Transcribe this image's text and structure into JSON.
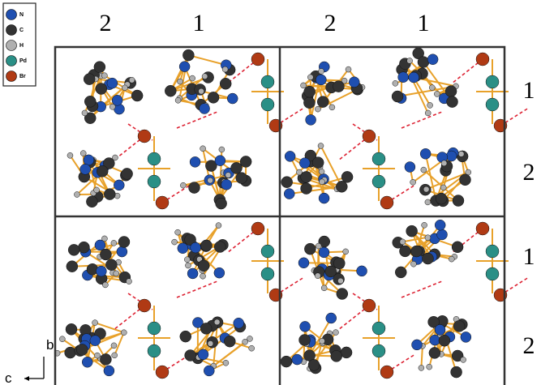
{
  "legend": [
    {
      "label": "N",
      "color": "#1f4fb0"
    },
    {
      "label": "C",
      "color": "#333333"
    },
    {
      "label": "H",
      "color": "#b0b0b0"
    },
    {
      "label": "Pd",
      "color": "#2a8f86"
    },
    {
      "label": "Br",
      "color": "#b03a14"
    }
  ],
  "column_labels": [
    "2",
    "1",
    "2",
    "1"
  ],
  "row_labels": [
    "1",
    "2",
    "1",
    "2"
  ],
  "axes": {
    "vertical": "b",
    "horizontal": "c"
  }
}
